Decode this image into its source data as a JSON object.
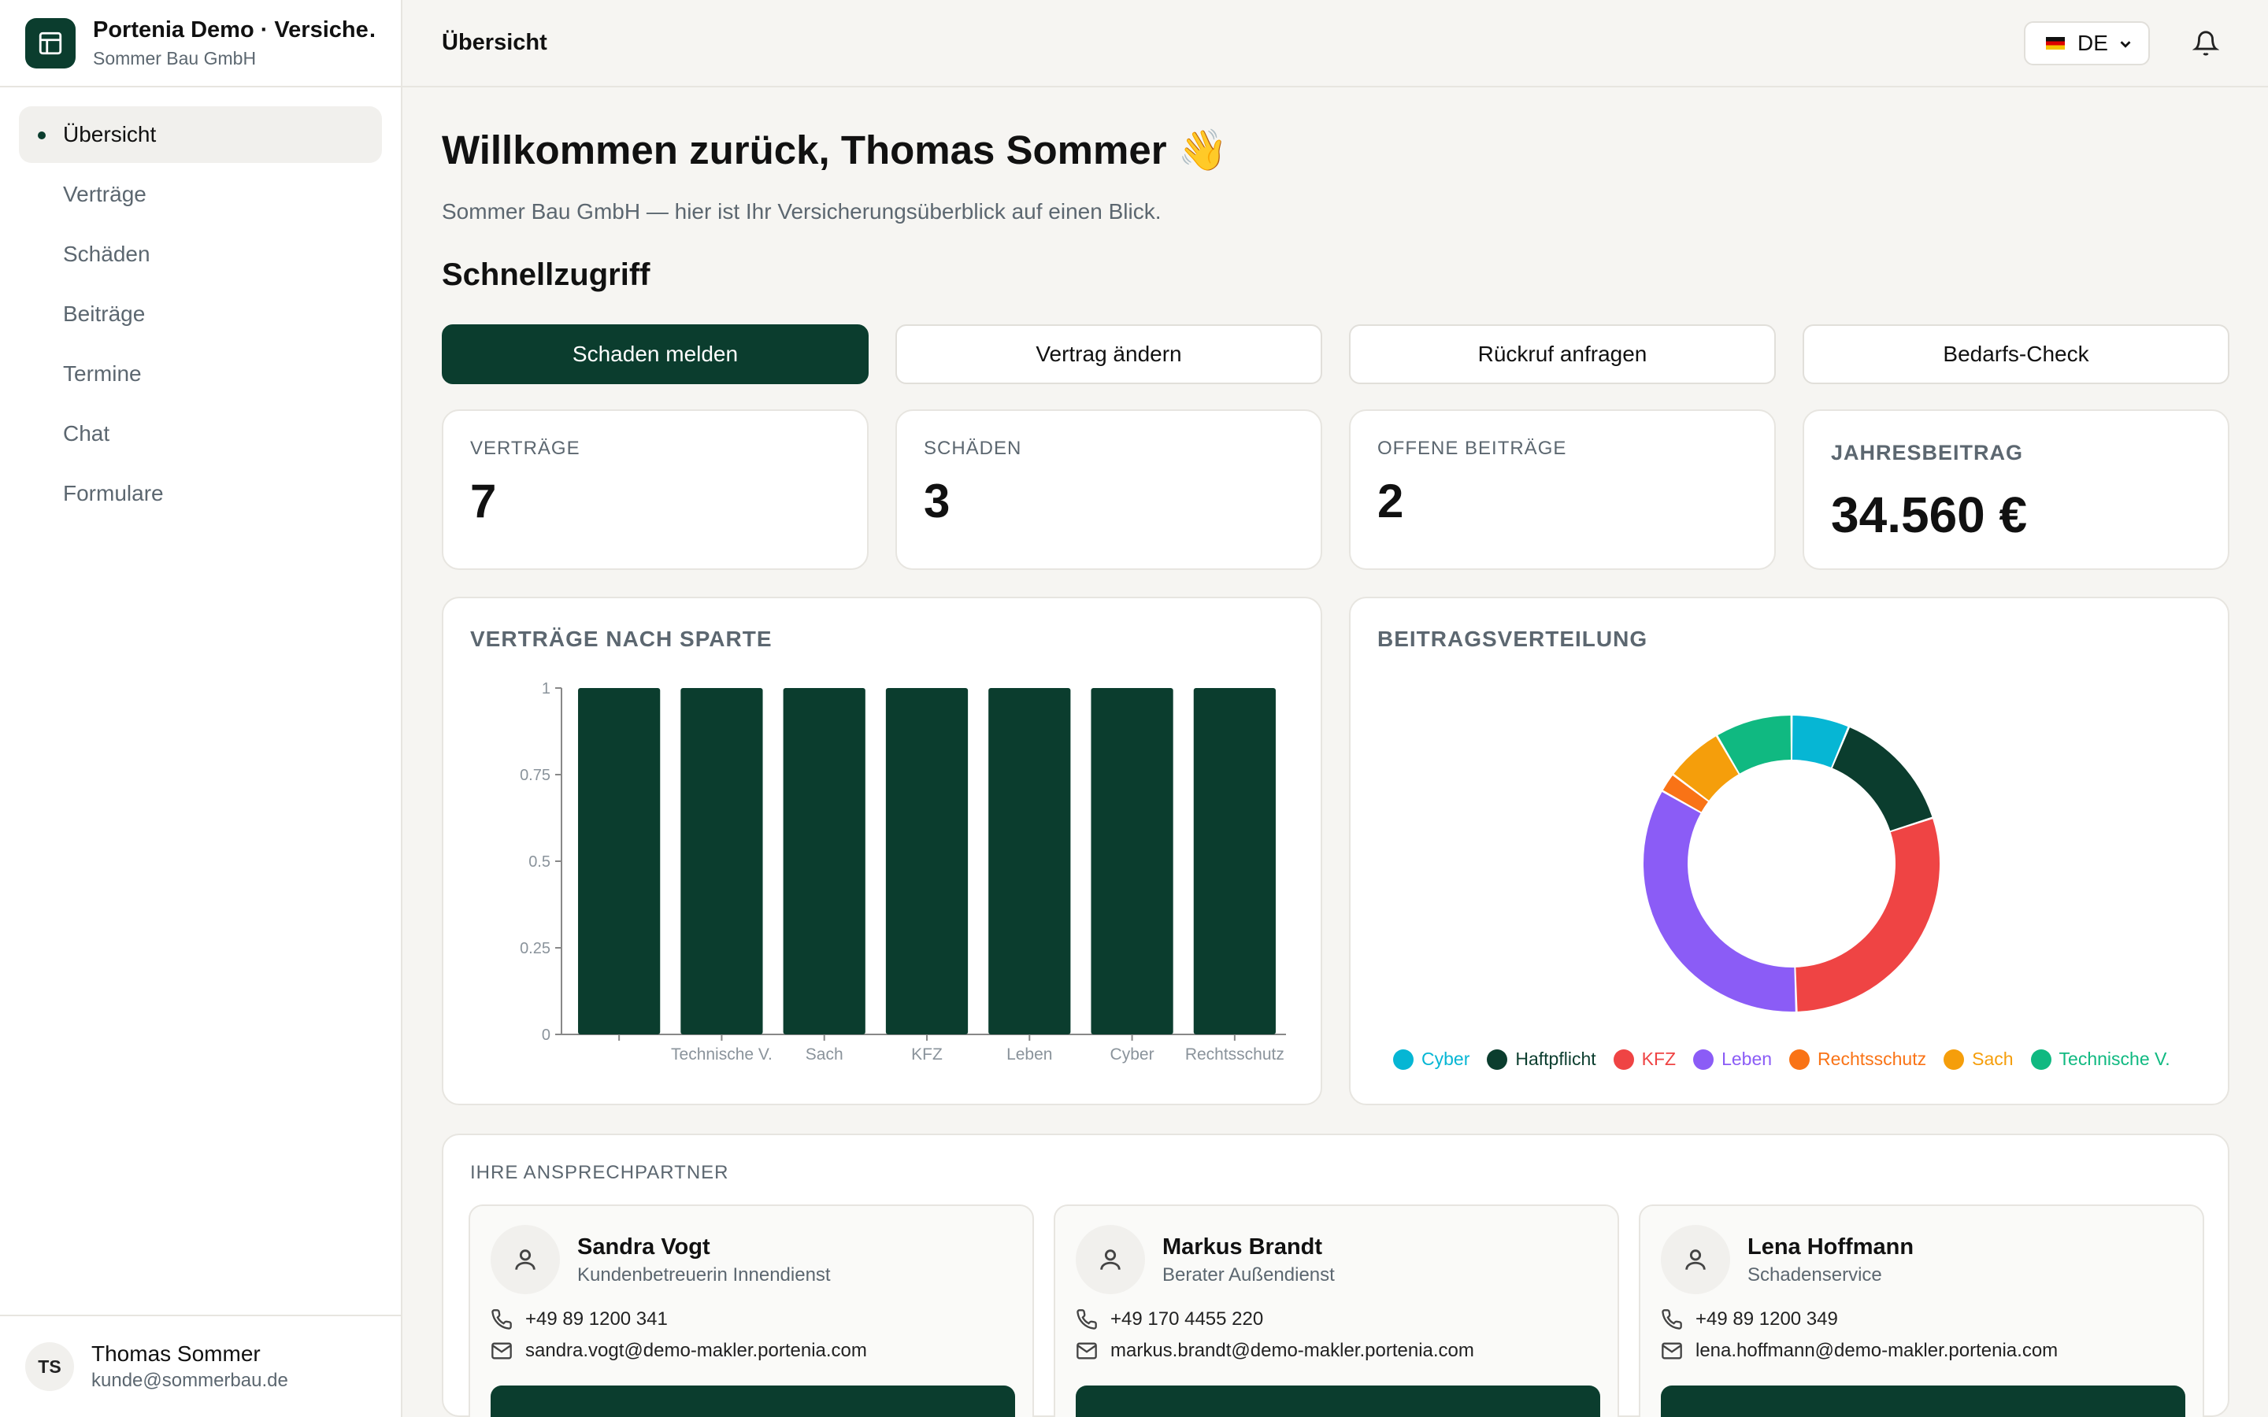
{
  "app": {
    "title": "Portenia Demo · Versicherungsmakler",
    "subtitle": "Sommer Bau GmbH"
  },
  "nav": {
    "items": [
      {
        "label": "Übersicht",
        "active": true
      },
      {
        "label": "Verträge"
      },
      {
        "label": "Schäden"
      },
      {
        "label": "Beiträge"
      },
      {
        "label": "Termine"
      },
      {
        "label": "Chat"
      },
      {
        "label": "Formulare"
      }
    ]
  },
  "user": {
    "initials": "TS",
    "name": "Thomas Sommer",
    "email": "kunde@sommerbau.de"
  },
  "topbar": {
    "title": "Übersicht",
    "language": "DE",
    "language_flag": "flag-de-icon"
  },
  "welcome": {
    "heading": "Willkommen zurück, Thomas Sommer 👋",
    "lead": "Sommer Bau GmbH — hier ist Ihr Versicherungsüberblick auf einen Blick."
  },
  "quick": {
    "title": "Schnellzugriff",
    "actions": [
      "Schaden melden",
      "Vertrag ändern",
      "Rückruf anfragen",
      "Bedarfs-Check"
    ]
  },
  "stats": [
    {
      "label": "VERTRÄGE",
      "value": "7"
    },
    {
      "label": "SCHÄDEN",
      "value": "3"
    },
    {
      "label": "OFFENE BEITRÄGE",
      "value": "2"
    },
    {
      "label": "JAHRESBEITRAG",
      "value": "34.560 €"
    }
  ],
  "colors": {
    "primary": "#0b3d2e",
    "cyber": "#06b6d4",
    "haftpflicht": "#0b3d2e",
    "kfz": "#ef4444",
    "leben": "#8b5cf6",
    "rechtsschutz": "#f97316",
    "sach": "#f59e0b",
    "technische": "#10b981"
  },
  "chart_data": [
    {
      "type": "bar",
      "title": "VERTRÄGE NACH SPARTE",
      "categories": [
        "",
        "Technische V.",
        "Sach",
        "KFZ",
        "Leben",
        "Cyber",
        "Rechtsschutz"
      ],
      "values": [
        1,
        1,
        1,
        1,
        1,
        1,
        1
      ],
      "ylim": [
        0,
        1
      ],
      "yticks": [
        "0",
        "0.25",
        "0.5",
        "0.75",
        "1"
      ],
      "grid": false
    },
    {
      "type": "pie",
      "title": "BEITRAGSVERTEILUNG",
      "donut": true,
      "legend_position": "bottom",
      "slices": [
        {
          "name": "Cyber",
          "value": 6,
          "color": "#06b6d4"
        },
        {
          "name": "Haftpflicht",
          "value": 13,
          "color": "#0b3d2e"
        },
        {
          "name": "KFZ",
          "value": 28,
          "color": "#ef4444"
        },
        {
          "name": "Leben",
          "value": 32,
          "color": "#8b5cf6"
        },
        {
          "name": "Rechtsschutz",
          "value": 2,
          "color": "#f97316"
        },
        {
          "name": "Sach",
          "value": 6,
          "color": "#f59e0b"
        },
        {
          "name": "Technische V.",
          "value": 8,
          "color": "#10b981"
        }
      ]
    }
  ],
  "contacts": {
    "title": "IHRE ANSPRECHPARTNER",
    "people": [
      {
        "name": "Sandra Vogt",
        "role": "Kundenbetreuerin Innendienst",
        "phone": "+49 89 1200 341",
        "email": "sandra.vogt@demo-makler.portenia.com"
      },
      {
        "name": "Markus Brandt",
        "role": "Berater Außendienst",
        "phone": "+49 170 4455 220",
        "email": "markus.brandt@demo-makler.portenia.com"
      },
      {
        "name": "Lena Hoffmann",
        "role": "Schadenservice",
        "phone": "+49 89 1200 349",
        "email": "lena.hoffmann@demo-makler.portenia.com"
      }
    ]
  }
}
